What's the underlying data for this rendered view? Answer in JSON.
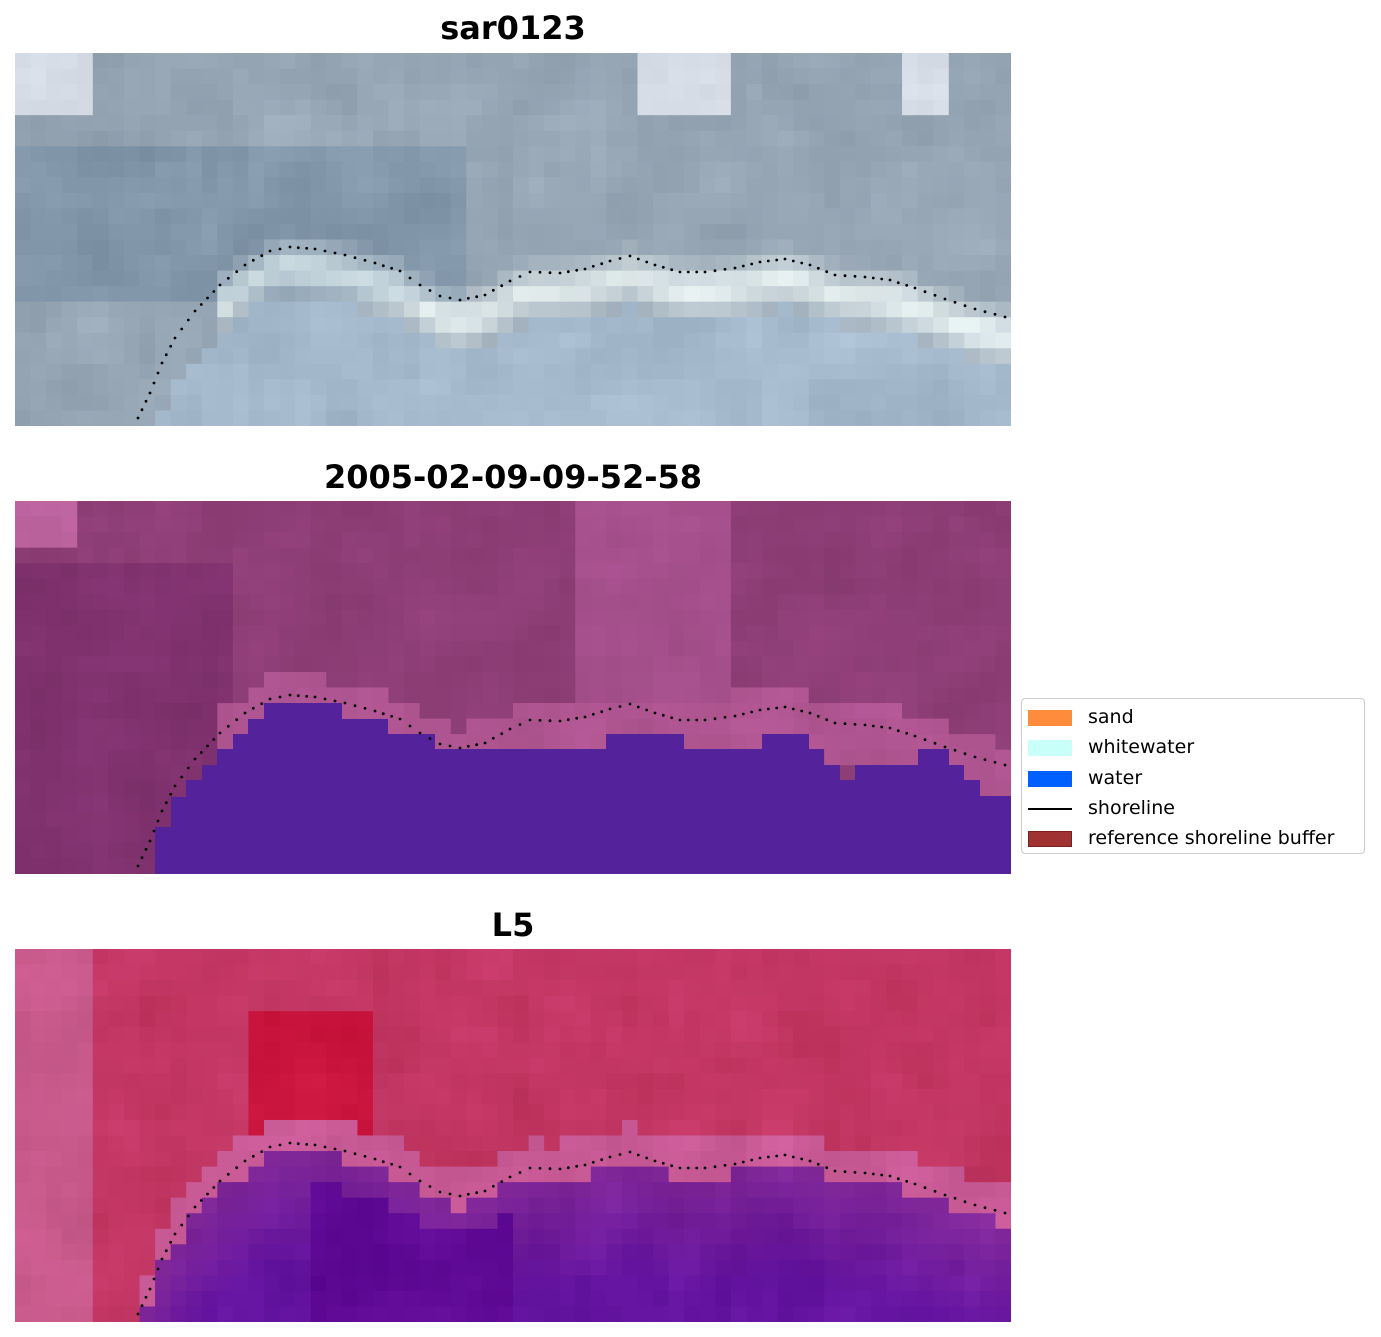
{
  "panels": [
    {
      "title": "sar0123",
      "kind": "rgb"
    },
    {
      "title": "2005-02-09-09-52-58",
      "kind": "classified"
    },
    {
      "title": "L5",
      "kind": "index"
    }
  ],
  "legend": {
    "items": [
      {
        "label": "sand",
        "color": "#ff8c3c",
        "type": "patch"
      },
      {
        "label": "whitewater",
        "color": "#c8fff8",
        "type": "patch"
      },
      {
        "label": "water",
        "color": "#0060ff",
        "type": "patch"
      },
      {
        "label": "shoreline",
        "color": "#000000",
        "type": "line"
      },
      {
        "label": "reference shoreline buffer",
        "color": "#a03232",
        "type": "patch"
      }
    ]
  },
  "colors": {
    "water_mask": "#54229b",
    "background_purple": "#8d3f78",
    "index_red": "#c03260",
    "index_purple": "#7a2a9e"
  }
}
